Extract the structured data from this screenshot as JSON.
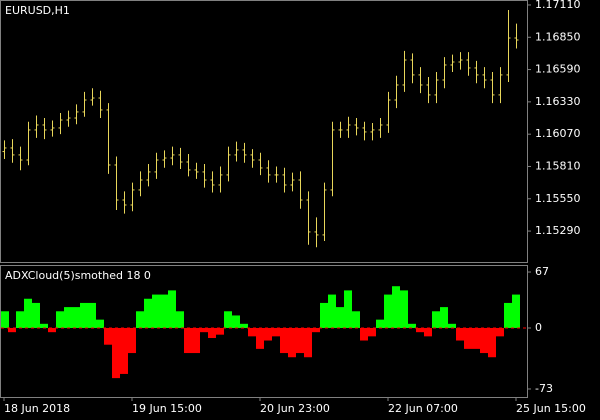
{
  "chart_data": [
    {
      "type": "ohlc",
      "title": "EURUSD,H1",
      "color": "#e8d65a",
      "categories": [
        "18 Jun 2018",
        null,
        null,
        null,
        null,
        null,
        null,
        null,
        null,
        null,
        null,
        null,
        null,
        null,
        null,
        null,
        "19 Jun 15:00",
        null,
        null,
        null,
        null,
        null,
        null,
        null,
        null,
        null,
        null,
        null,
        null,
        null,
        null,
        null,
        "20 Jun 23:00",
        null,
        null,
        null,
        null,
        null,
        null,
        null,
        null,
        null,
        null,
        null,
        null,
        null,
        null,
        null,
        "22 Jun 07:00",
        null,
        null,
        null,
        null,
        null,
        null,
        null,
        null,
        null,
        null,
        null,
        null,
        null,
        null,
        null,
        "25 Jun 15:00"
      ],
      "open": [
        1.1593,
        1.15959,
        1.15903,
        1.15862,
        1.16104,
        1.16144,
        1.16104,
        1.1612,
        1.16184,
        1.162,
        1.16249,
        1.16345,
        1.16361,
        1.16265,
        1.15822,
        1.1554,
        1.155,
        1.15621,
        1.15701,
        1.15766,
        1.15862,
        1.15878,
        1.15903,
        1.15846,
        1.15782,
        1.15766,
        1.15701,
        1.15661,
        1.15742,
        1.15903,
        1.15943,
        1.15903,
        1.15862,
        1.15798,
        1.15742,
        1.15742,
        1.15661,
        1.15701,
        1.1554,
        1.15283,
        1.15259,
        1.15621,
        1.16104,
        1.16104,
        1.16144,
        1.1612,
        1.16088,
        1.16104,
        1.16144,
        1.16345,
        1.16466,
        1.16667,
        1.16547,
        1.16466,
        1.16386,
        1.16506,
        1.16627,
        1.16651,
        1.16667,
        1.16603,
        1.16547,
        1.16506,
        1.16386,
        1.16547,
        1.16844
      ],
      "high": [
        1.1602,
        1.1603,
        1.1597,
        1.1617,
        1.1622,
        1.162,
        1.1618,
        1.1624,
        1.1626,
        1.1631,
        1.1641,
        1.1644,
        1.1642,
        1.1632,
        1.1589,
        1.1561,
        1.1568,
        1.1577,
        1.1583,
        1.1592,
        1.1594,
        1.1597,
        1.1596,
        1.1591,
        1.1584,
        1.1583,
        1.1577,
        1.1581,
        1.1597,
        1.1601,
        1.16,
        1.1595,
        1.1592,
        1.1586,
        1.1581,
        1.158,
        1.1576,
        1.1577,
        1.1561,
        1.154,
        1.1568,
        1.1617,
        1.1617,
        1.1621,
        1.162,
        1.1617,
        1.1616,
        1.162,
        1.1641,
        1.1654,
        1.1674,
        1.1672,
        1.1661,
        1.1653,
        1.1657,
        1.1669,
        1.1671,
        1.1673,
        1.1673,
        1.1666,
        1.1661,
        1.1657,
        1.1661,
        1.1707,
        1.1696
      ],
      "low": [
        1.1587,
        1.1584,
        1.1578,
        1.1582,
        1.1604,
        1.1603,
        1.1605,
        1.1607,
        1.1613,
        1.1615,
        1.1621,
        1.163,
        1.162,
        1.1575,
        1.1546,
        1.1543,
        1.1545,
        1.1557,
        1.1565,
        1.1571,
        1.158,
        1.1582,
        1.1579,
        1.1573,
        1.1571,
        1.1564,
        1.156,
        1.156,
        1.1569,
        1.1585,
        1.1584,
        1.158,
        1.1574,
        1.1568,
        1.1568,
        1.156,
        1.1561,
        1.1547,
        1.1518,
        1.1516,
        1.1521,
        1.1557,
        1.1604,
        1.1604,
        1.1606,
        1.1602,
        1.1602,
        1.1604,
        1.1608,
        1.1628,
        1.1641,
        1.1648,
        1.164,
        1.1632,
        1.1632,
        1.1644,
        1.1657,
        1.1659,
        1.1654,
        1.1648,
        1.1644,
        1.1632,
        1.1632,
        1.1649,
        1.1676
      ],
      "close": [
        1.15959,
        1.15903,
        1.15862,
        1.16104,
        1.16144,
        1.16104,
        1.1612,
        1.16184,
        1.162,
        1.16249,
        1.16345,
        1.16361,
        1.16265,
        1.15822,
        1.1554,
        1.155,
        1.15621,
        1.15701,
        1.15766,
        1.15862,
        1.15878,
        1.15903,
        1.15846,
        1.15782,
        1.15766,
        1.15701,
        1.15661,
        1.15742,
        1.15903,
        1.15943,
        1.15903,
        1.15862,
        1.15798,
        1.15742,
        1.15742,
        1.15661,
        1.15701,
        1.1554,
        1.15283,
        1.15259,
        1.15621,
        1.16104,
        1.16104,
        1.16144,
        1.1612,
        1.16088,
        1.16104,
        1.16144,
        1.16345,
        1.16466,
        1.16667,
        1.16547,
        1.16466,
        1.16386,
        1.16506,
        1.16627,
        1.16651,
        1.16667,
        1.16603,
        1.16547,
        1.16506,
        1.16386,
        1.16547,
        1.16844,
        1.16828
      ],
      "ylim": [
        1.15041,
        1.1715
      ],
      "yticks": [
        {
          "value": 1.1711,
          "label": "1.17110"
        },
        {
          "value": 1.1685,
          "label": "1.16850"
        },
        {
          "value": 1.1659,
          "label": "1.16590"
        },
        {
          "value": 1.1633,
          "label": "1.16330"
        },
        {
          "value": 1.1607,
          "label": "1.16070"
        },
        {
          "value": 1.1581,
          "label": "1.15810"
        },
        {
          "value": 1.1555,
          "label": "1.15550"
        },
        {
          "value": 1.1529,
          "label": "1.15290"
        }
      ]
    },
    {
      "type": "cloud",
      "title": "ADXCloud(5)smothed 18 0",
      "up_color": "#00ff00",
      "down_color": "#ff0000",
      "values": [
        20,
        -5,
        20,
        35,
        30,
        5,
        -5,
        20,
        25,
        25,
        30,
        30,
        10,
        -20,
        -60,
        -55,
        -30,
        20,
        35,
        40,
        40,
        45,
        20,
        -30,
        -30,
        -5,
        -12,
        -8,
        20,
        15,
        5,
        -10,
        -25,
        -15,
        -10,
        -30,
        -35,
        -30,
        -35,
        -5,
        30,
        40,
        25,
        45,
        20,
        -15,
        -10,
        10,
        40,
        50,
        45,
        5,
        -5,
        -10,
        20,
        25,
        5,
        -15,
        -25,
        -25,
        -30,
        -35,
        -10,
        30,
        40
      ],
      "ylim": [
        -82.6,
        75.4
      ],
      "yticks": [
        67,
        0,
        -73
      ]
    }
  ]
}
